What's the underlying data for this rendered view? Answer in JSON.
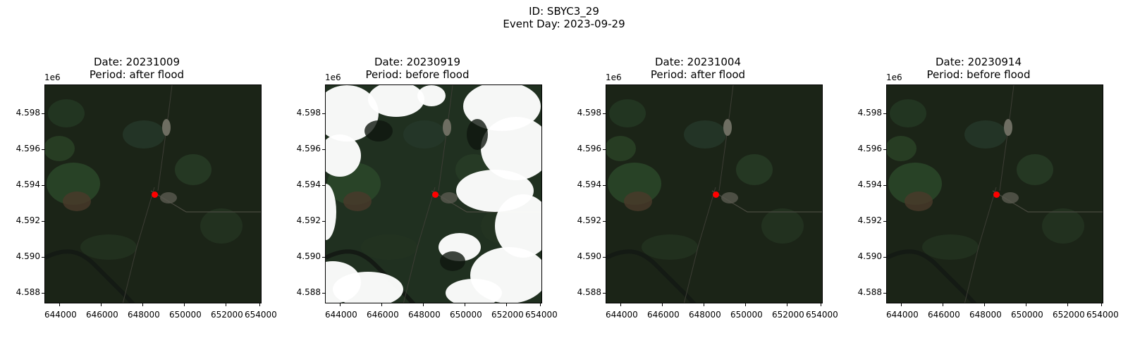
{
  "figure": {
    "title_id": "ID: SBYC3_29",
    "title_event": "Event Day: 2023-09-29"
  },
  "y_offset_label": "1e6",
  "y_ticks": [
    "4.598",
    "4.596",
    "4.594",
    "4.592",
    "4.590",
    "4.588"
  ],
  "x_ticks": [
    "644000",
    "646000",
    "648000",
    "650000",
    "652000",
    "654000"
  ],
  "panels": [
    {
      "date_label": "Date: 20231009",
      "period_label": "Period: after flood",
      "scene": "clear-dark"
    },
    {
      "date_label": "Date: 20230919",
      "period_label": "Period: before flood",
      "scene": "cloudy"
    },
    {
      "date_label": "Date: 20231004",
      "period_label": "Period: after flood",
      "scene": "clear-dark"
    },
    {
      "date_label": "Date: 20230914",
      "period_label": "Period: before flood",
      "scene": "clear-dark"
    }
  ],
  "colors": {
    "marker": "#ff0000",
    "land_dark": "#1c2415",
    "cloud": "#ffffff"
  },
  "marker": {
    "label": "event-location",
    "x_fraction": 0.505,
    "y_fraction": 0.5
  }
}
